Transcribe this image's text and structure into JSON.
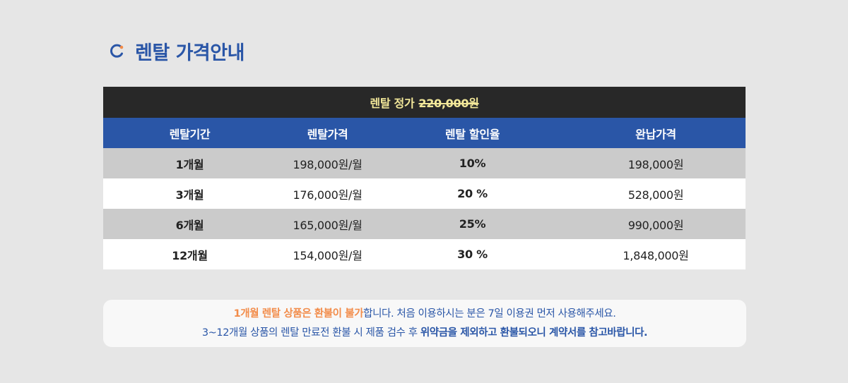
{
  "title": {
    "icon": "refresh-circle-icon",
    "text": "렌탈 가격안내",
    "color": "#2a56a7",
    "accent": "#f28c4a"
  },
  "price_bar": {
    "label": "렌탈 정가",
    "original_price": "220,000원"
  },
  "table": {
    "headers": [
      "렌탈기간",
      "렌탈가격",
      "렌탈 할인율",
      "완납가격"
    ],
    "rows": [
      {
        "period": "1개월",
        "price": "198,000원/월",
        "discount": "10%",
        "total": "198,000원"
      },
      {
        "period": "3개월",
        "price": "176,000원/월",
        "discount": "20 %",
        "total": "528,000원"
      },
      {
        "period": "6개월",
        "price": "165,000원/월",
        "discount": "25%",
        "total": "990,000원"
      },
      {
        "period": "12개월",
        "price": "154,000원/월",
        "discount": "30 %",
        "total": "1,848,000원"
      }
    ]
  },
  "notice": {
    "line1_highlight": "1개월 렌탈 상품은 환불이 불가",
    "line1_rest": "합니다. 처음 이용하시는 분은 7일 이용권 먼저 사용해주세요.",
    "line2_plain": "3~12개월 상품의 렌탈 만료전 환불 시 제품 검수 후 ",
    "line2_strong": "위약금을 제외하고 환불되오니 계약서를 참고바랍니다."
  }
}
